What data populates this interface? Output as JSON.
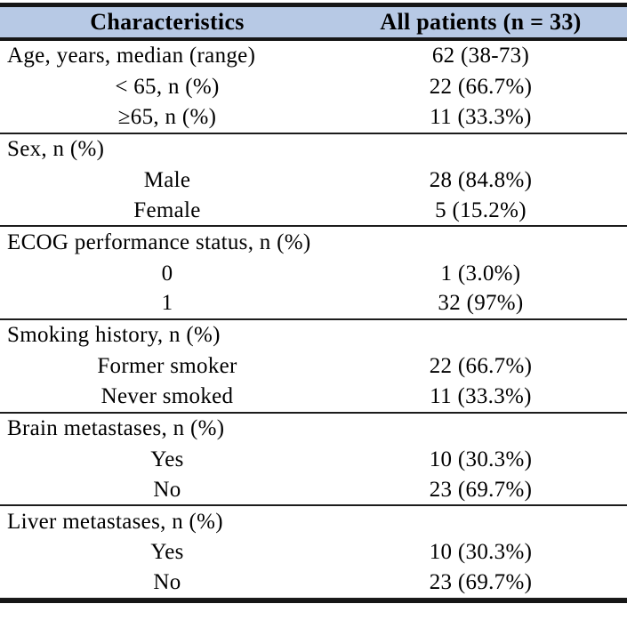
{
  "table": {
    "title": "patient-characteristics-table",
    "header": {
      "characteristics": "Characteristics",
      "all_patients": "All patients (n = 33)"
    },
    "rows": [
      {
        "label": "Age, years, median (range)",
        "value": "62 (38-73)",
        "subitem": false,
        "section_end": false
      },
      {
        "label": "< 65, n (%)",
        "value": "22 (66.7%)",
        "subitem": true,
        "section_end": false
      },
      {
        "label": "≥65, n (%)",
        "value": "11 (33.3%)",
        "subitem": true,
        "section_end": true
      },
      {
        "label": "Sex, n (%)",
        "value": "",
        "subitem": false,
        "section_end": false
      },
      {
        "label": "Male",
        "value": "28 (84.8%)",
        "subitem": true,
        "section_end": false
      },
      {
        "label": "Female",
        "value": "5 (15.2%)",
        "subitem": true,
        "section_end": true
      },
      {
        "label": "ECOG performance status, n (%)",
        "value": "",
        "subitem": false,
        "section_end": false
      },
      {
        "label": "0",
        "value": "1 (3.0%)",
        "subitem": true,
        "section_end": false
      },
      {
        "label": "1",
        "value": "32 (97%)",
        "subitem": true,
        "section_end": true
      },
      {
        "label": "Smoking history, n (%)",
        "value": "",
        "subitem": false,
        "section_end": false
      },
      {
        "label": "Former smoker",
        "value": "22 (66.7%)",
        "subitem": true,
        "section_end": false
      },
      {
        "label": "Never smoked",
        "value": "11 (33.3%)",
        "subitem": true,
        "section_end": true
      },
      {
        "label": "Brain metastases, n (%)",
        "value": "",
        "subitem": false,
        "section_end": false
      },
      {
        "label": "Yes",
        "value": "10 (30.3%)",
        "subitem": true,
        "section_end": false
      },
      {
        "label": "No",
        "value": "23 (69.7%)",
        "subitem": true,
        "section_end": true
      },
      {
        "label": "Liver metastases, n (%)",
        "value": "",
        "subitem": false,
        "section_end": false
      },
      {
        "label": "Yes",
        "value": "10 (30.3%)",
        "subitem": true,
        "section_end": false
      },
      {
        "label": "No",
        "value": "23 (69.7%)",
        "subitem": true,
        "section_end": true
      }
    ],
    "colors": {
      "header_bg": "#b7c9e5",
      "rule_color": "#161616",
      "text_color": "#000000"
    }
  }
}
